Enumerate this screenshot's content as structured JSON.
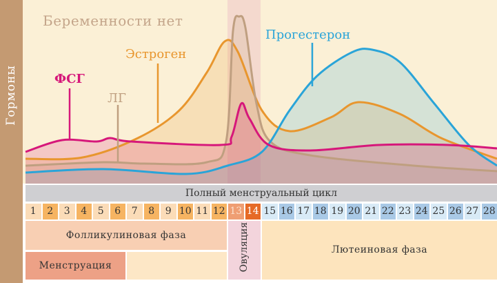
{
  "y_axis_label": "Гормоны",
  "title": "Беременности нет",
  "hormones": [
    {
      "name": "ФСГ",
      "color": "#d6177a"
    },
    {
      "name": "ЛГ",
      "color": "#bf9f80"
    },
    {
      "name": "Эстроген",
      "color": "#e8962e"
    },
    {
      "name": "Прогестерон",
      "color": "#2aa4d8"
    }
  ],
  "cycle_header": "Полный менструальный цикл",
  "days": [
    "1",
    "2",
    "3",
    "4",
    "5",
    "6",
    "7",
    "8",
    "9",
    "10",
    "11",
    "12",
    "13",
    "14",
    "15",
    "16",
    "17",
    "18",
    "19",
    "20",
    "21",
    "22",
    "23",
    "24",
    "25",
    "26",
    "27",
    "28"
  ],
  "phases": {
    "follicular": "Фолликулиновая фаза",
    "menstruation": "Менструация",
    "ovulation": "Овуляция",
    "luteal": "Лютеиновая фаза"
  },
  "colors": {
    "background": "#fbf0d6",
    "sidebar": "#c49a72",
    "ovulation_band": "#f0c9c8"
  }
}
